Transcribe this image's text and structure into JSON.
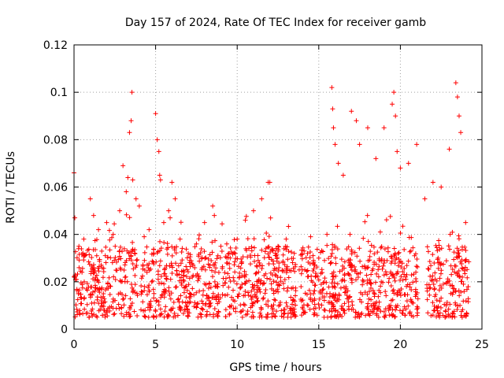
{
  "chart_data": {
    "type": "scatter",
    "title": "Day 157 of 2024, Rate Of TEC Index for receiver gamb",
    "xlabel": "GPS time / hours",
    "ylabel": "ROTI / TECUs",
    "xlim": [
      0,
      25
    ],
    "ylim": [
      0,
      0.12
    ],
    "xticks": [
      0,
      5,
      10,
      15,
      20,
      25
    ],
    "xtick_labels": [
      "0",
      "5",
      "10",
      "15",
      "20",
      "25"
    ],
    "yticks": [
      0,
      0.02,
      0.04,
      0.06,
      0.08,
      0.1,
      0.12
    ],
    "ytick_labels": [
      "0",
      "0.02",
      "0.04",
      "0.06",
      "0.08",
      "0.1",
      "0.12"
    ],
    "grid": true,
    "marker": "+",
    "color": "#ff0000",
    "series": [
      {
        "name": "ROTI",
        "x": [
          0.0,
          0.05,
          0.3,
          0.6,
          1.0,
          1.2,
          1.5,
          2.0,
          2.4,
          2.8,
          3.0,
          3.2,
          3.3,
          3.4,
          3.5,
          3.55,
          3.6,
          3.8,
          4.0,
          4.3,
          4.6,
          5.0,
          5.1,
          5.2,
          5.25,
          5.3,
          5.5,
          5.8,
          6.0,
          6.2,
          6.5,
          7.0,
          7.5,
          8.0,
          8.5,
          8.6,
          9.0,
          9.5,
          10.0,
          10.5,
          11.0,
          11.5,
          11.9,
          12.0,
          12.5,
          13.0,
          13.5,
          13.8,
          14.0,
          14.5,
          15.0,
          15.5,
          15.8,
          15.85,
          15.9,
          16.0,
          16.2,
          16.5,
          17.0,
          17.3,
          17.5,
          18.0,
          18.5,
          19.0,
          19.5,
          19.6,
          19.7,
          19.8,
          20.0,
          20.5,
          21.0,
          21.5,
          22.0,
          22.5,
          23.0,
          23.4,
          23.5,
          23.6,
          23.7,
          24.0
        ],
        "y": [
          0.066,
          0.047,
          0.035,
          0.038,
          0.055,
          0.048,
          0.042,
          0.045,
          0.04,
          0.05,
          0.069,
          0.058,
          0.064,
          0.083,
          0.088,
          0.1,
          0.063,
          0.055,
          0.052,
          0.039,
          0.042,
          0.091,
          0.08,
          0.075,
          0.065,
          0.063,
          0.045,
          0.05,
          0.062,
          0.055,
          0.038,
          0.032,
          0.036,
          0.045,
          0.052,
          0.048,
          0.035,
          0.032,
          0.038,
          0.046,
          0.05,
          0.055,
          0.062,
          0.062,
          0.035,
          0.038,
          0.032,
          0.025,
          0.025,
          0.039,
          0.03,
          0.04,
          0.102,
          0.093,
          0.085,
          0.078,
          0.07,
          0.065,
          0.092,
          0.088,
          0.078,
          0.085,
          0.072,
          0.085,
          0.095,
          0.1,
          0.09,
          0.075,
          0.068,
          0.07,
          0.078,
          0.055,
          0.062,
          0.06,
          0.076,
          0.104,
          0.098,
          0.09,
          0.083,
          0.045
        ]
      }
    ],
    "background_band": {
      "description": "dense cluster of observations between 0.005 and 0.035 TECUs",
      "y_range": [
        0.005,
        0.035
      ],
      "segments": [
        [
          0.0,
          3.9
        ],
        [
          4.1,
          13.6
        ],
        [
          13.9,
          21.1
        ],
        [
          21.6,
          24.2
        ]
      ]
    }
  }
}
